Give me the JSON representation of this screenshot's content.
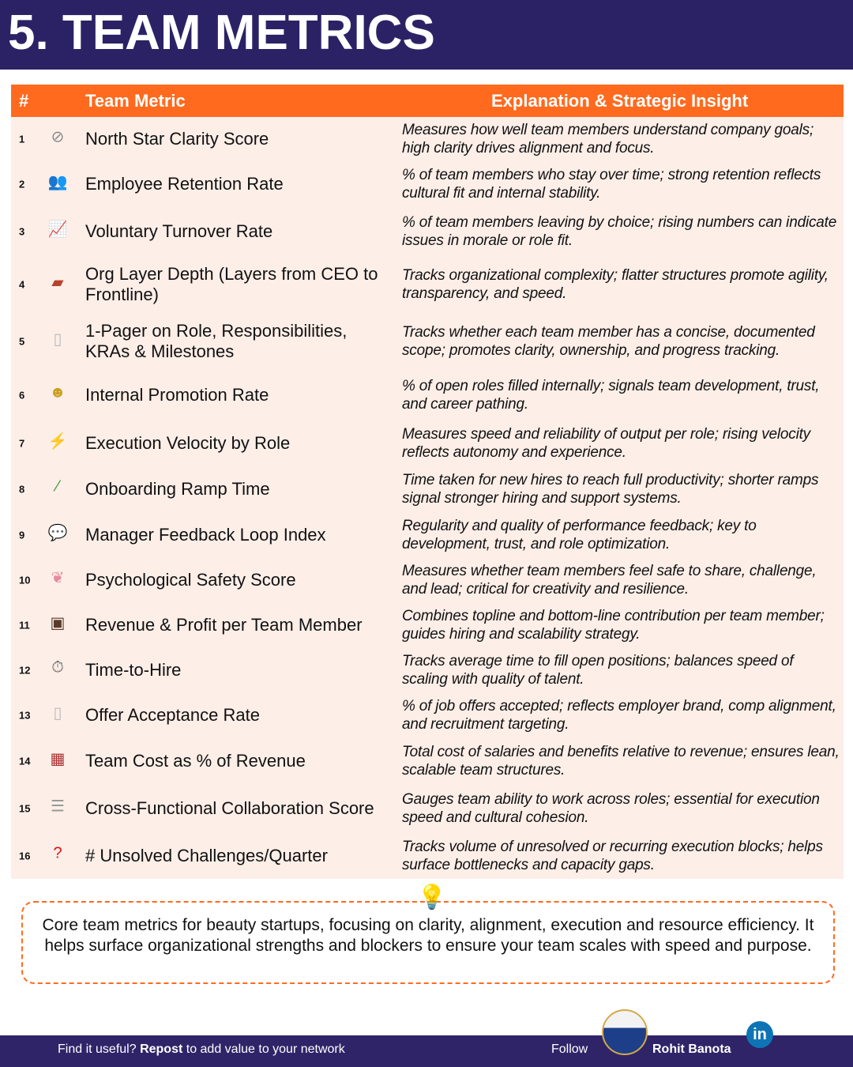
{
  "title": "5. TEAM METRICS",
  "table": {
    "headers": {
      "num": "#",
      "metric": "Team Metric",
      "explanation": "Explanation & Strategic Insight"
    },
    "rows": [
      {
        "num": "1",
        "icon": "compass-icon",
        "glyph": "⊘",
        "metric": "North Star Clarity Score",
        "explanation": "Measures how well team members understand company goals; high clarity drives alignment and focus."
      },
      {
        "num": "2",
        "icon": "people-icon",
        "glyph": "👥",
        "metric": "Employee Retention Rate",
        "explanation": "% of team members who stay over time; strong retention reflects cultural fit and internal stability."
      },
      {
        "num": "3",
        "icon": "chart-increasing-icon",
        "glyph": "📈",
        "metric": "Voluntary Turnover Rate",
        "explanation": "% of team members leaving by choice; rising numbers can indicate issues in morale or role fit."
      },
      {
        "num": "4",
        "icon": "bricks-icon",
        "glyph": "▰",
        "metric": "Org Layer Depth (Layers from CEO to Frontline)",
        "explanation": "Tracks organizational complexity; flatter structures promote agility, transparency, and speed."
      },
      {
        "num": "5",
        "icon": "page-icon",
        "glyph": "▯",
        "metric": "1-Pager on Role, Responsibilities, KRAs & Milestones",
        "explanation": "Tracks whether each team member has a concise, documented scope; promotes clarity, ownership, and progress tracking."
      },
      {
        "num": "6",
        "icon": "worker-icon",
        "glyph": "☻",
        "metric": "Internal Promotion Rate",
        "explanation": "% of open roles filled internally; signals team development, trust, and career pathing."
      },
      {
        "num": "7",
        "icon": "lightning-icon",
        "glyph": "⚡",
        "metric": "Execution Velocity by Role",
        "explanation": "Measures speed and reliability of output per role; rising velocity reflects autonomy and experience."
      },
      {
        "num": "8",
        "icon": "test-tube-icon",
        "glyph": "⁄",
        "metric": "Onboarding Ramp Time",
        "explanation": "Time taken for new hires to reach full productivity; shorter ramps signal stronger hiring and support systems."
      },
      {
        "num": "9",
        "icon": "speech-bubble-icon",
        "glyph": "💬",
        "metric": "Manager Feedback Loop Index",
        "explanation": "Regularity and quality of performance feedback; key to development, trust, and role optimization."
      },
      {
        "num": "10",
        "icon": "brain-icon",
        "glyph": "❦",
        "metric": "Psychological Safety Score",
        "explanation": "Measures whether team members feel safe to share, challenge, and lead; critical for creativity and resilience."
      },
      {
        "num": "11",
        "icon": "briefcase-icon",
        "glyph": "▣",
        "metric": "Revenue & Profit per Team Member",
        "explanation": "Combines topline and bottom-line contribution per team member; guides hiring and scalability strategy."
      },
      {
        "num": "12",
        "icon": "stopwatch-icon",
        "glyph": "⏱",
        "metric": "Time-to-Hire",
        "explanation": "Tracks average time to fill open positions; balances speed of scaling with quality of talent."
      },
      {
        "num": "13",
        "icon": "page-icon",
        "glyph": "▯",
        "metric": "Offer Acceptance Rate",
        "explanation": "% of job offers accepted; reflects employer brand, comp alignment, and recruitment targeting."
      },
      {
        "num": "14",
        "icon": "abacus-icon",
        "glyph": "▦",
        "metric": "Team Cost as % of Revenue",
        "explanation": "Total cost of salaries and benefits relative to revenue; ensures lean, scalable team structures."
      },
      {
        "num": "15",
        "icon": "receipt-icon",
        "glyph": "☰",
        "metric": "Cross-Functional Collaboration Score",
        "explanation": "Gauges team ability to work across roles; essential for execution speed and cultural cohesion."
      },
      {
        "num": "16",
        "icon": "question-mark-icon",
        "glyph": "?",
        "metric": "# Unsolved Challenges/Quarter",
        "explanation": "Tracks volume of unresolved or recurring execution blocks; helps surface bottlenecks and capacity gaps."
      }
    ]
  },
  "note": {
    "icon": "light-bulb-icon",
    "text": "Core team metrics for beauty startups, focusing on clarity, alignment, execution and resource efficiency. It helps surface organizational strengths and blockers to ensure your team scales with speed and purpose."
  },
  "footer": {
    "prefix": "Find it useful? ",
    "bold": "Repost",
    "suffix": " to add value to your network",
    "follow": "Follow",
    "name": "Rohit Banota",
    "linkedin": "in"
  },
  "colors": {
    "navy": "#2b2266",
    "orange": "#ff6a1f",
    "row_bg": "#fdeee8"
  }
}
